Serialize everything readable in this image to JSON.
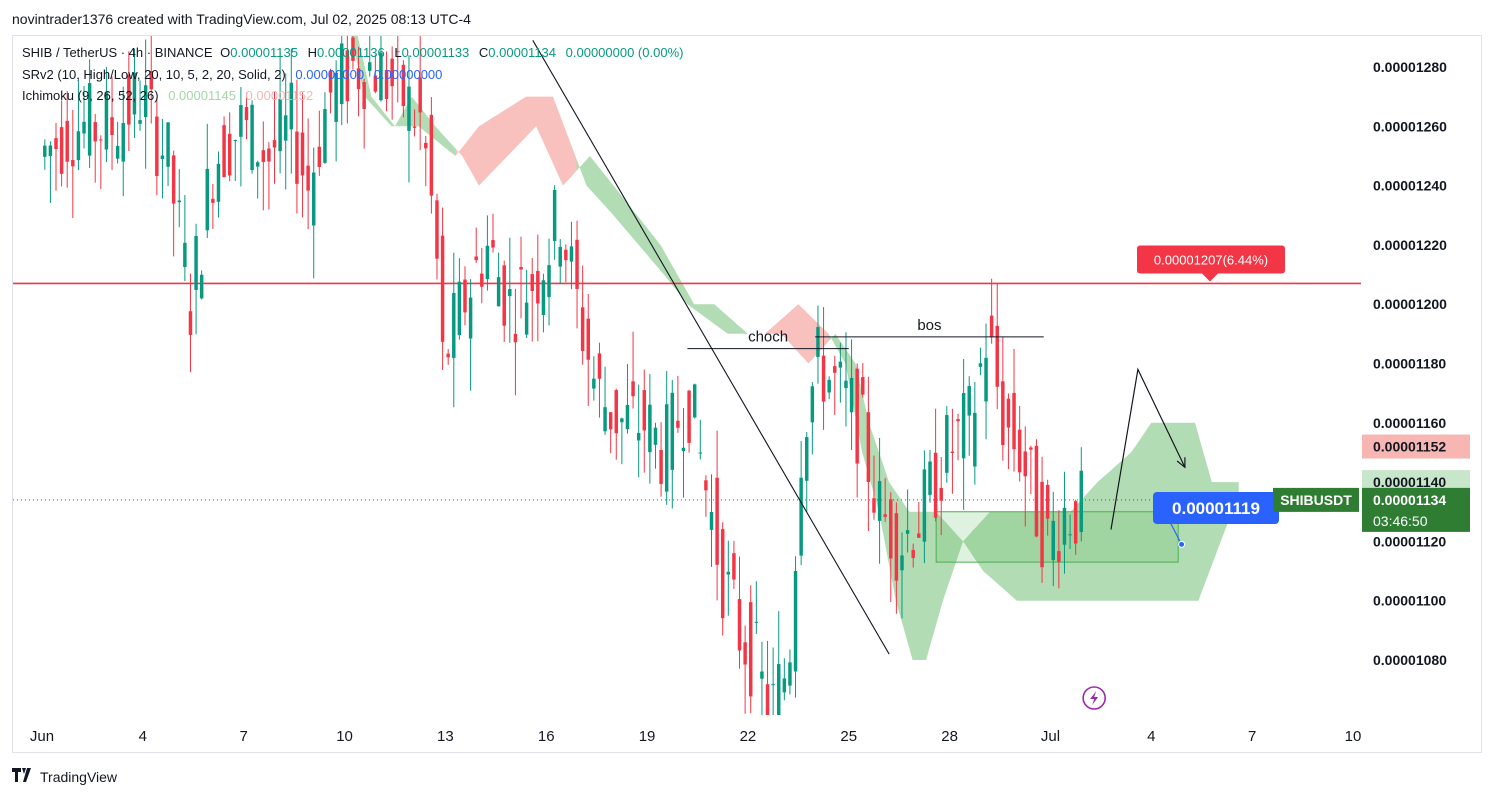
{
  "header": {
    "caption": "novintrader1376 created with TradingView.com, Jul 02, 2025 08:13 UTC-4"
  },
  "legend": {
    "symbol_line": {
      "symbol": "SHIB / TetherUS · 4h · BINANCE",
      "o_label": "O",
      "o_value": "0.00001135",
      "h_label": "H",
      "h_value": "0.00001136",
      "l_label": "L",
      "l_value": "0.00001133",
      "c_label": "C",
      "c_value": "0.00001134",
      "change": "0.00000000 (0.00%)"
    },
    "srv2": {
      "name": "SRv2 (10, High/Low, 20, 10, 5, 2, 20, Solid, 2)",
      "v1": "0.00000000",
      "v2": "0.00000000"
    },
    "ichimoku": {
      "name": "Ichimoku (9, 26, 52, 26)",
      "v1": "0.00001145",
      "v2": "0.00001152"
    }
  },
  "footer": {
    "brand": "TradingView",
    "logo_icon": "tradingview-logo-icon"
  },
  "colors": {
    "up": "#26a69a",
    "up_candle": "#089981",
    "down": "#f23645",
    "cloud_down": "#f7b6b2",
    "cloud_up": "#a5d6a7",
    "level": "#f23645",
    "blue_tag": "#2962ff",
    "green_tag": "#2e7d32"
  },
  "chart_data": {
    "type": "candlestick",
    "title": "SHIB / TetherUS · 4h · BINANCE",
    "x_ticks": [
      {
        "label": "Jun",
        "day": 1
      },
      {
        "label": "4",
        "day": 4
      },
      {
        "label": "7",
        "day": 7
      },
      {
        "label": "10",
        "day": 10
      },
      {
        "label": "13",
        "day": 13
      },
      {
        "label": "16",
        "day": 16
      },
      {
        "label": "19",
        "day": 19
      },
      {
        "label": "22",
        "day": 22
      },
      {
        "label": "25",
        "day": 25
      },
      {
        "label": "28",
        "day": 28
      },
      {
        "label": "Jul",
        "day": 31
      },
      {
        "label": "4",
        "day": 34
      },
      {
        "label": "7",
        "day": 37
      },
      {
        "label": "10",
        "day": 40
      }
    ],
    "y_ticks": [
      "0.00001280",
      "0.00001260",
      "0.00001240",
      "0.00001220",
      "0.00001200",
      "0.00001180",
      "0.00001160",
      "0.00001140",
      "0.00001120",
      "0.00001100",
      "0.00001080"
    ],
    "ylim": [
      1.06e-05,
      1.29e-05
    ],
    "price_anchors": [
      [
        1,
        1.25e-05
      ],
      [
        2,
        1.26e-05
      ],
      [
        3.2,
        1.26e-05
      ],
      [
        4,
        1.27e-05
      ],
      [
        4.8,
        1.25e-05
      ],
      [
        5.5,
        1.2e-05
      ],
      [
        6.2,
        1.25e-05
      ],
      [
        7,
        1.26e-05
      ],
      [
        7.8,
        1.25e-05
      ],
      [
        8.5,
        1.26e-05
      ],
      [
        9,
        1.24e-05
      ],
      [
        9.6,
        1.27e-05
      ],
      [
        10.3,
        1.28e-05
      ],
      [
        11,
        1.28e-05
      ],
      [
        11.8,
        1.27e-05
      ],
      [
        12.4,
        1.26e-05
      ],
      [
        12.8,
        1.22e-05
      ],
      [
        13,
        1.18e-05
      ],
      [
        13.6,
        1.2e-05
      ],
      [
        14.3,
        1.22e-05
      ],
      [
        15,
        1.2e-05
      ],
      [
        15.8,
        1.21e-05
      ],
      [
        16.5,
        1.23e-05
      ],
      [
        17,
        1.2e-05
      ],
      [
        17.6,
        1.17e-05
      ],
      [
        18.3,
        1.16e-05
      ],
      [
        19,
        1.16e-05
      ],
      [
        19.6,
        1.15e-05
      ],
      [
        20.3,
        1.17e-05
      ],
      [
        20.8,
        1.14e-05
      ],
      [
        21.3,
        1.11e-05
      ],
      [
        21.8,
        1.09e-05
      ],
      [
        22.3,
        1.08e-05
      ],
      [
        22.7,
        1.06e-05
      ],
      [
        23.3,
        1.08e-05
      ],
      [
        23.7,
        1.16e-05
      ],
      [
        24.2,
        1.18e-05
      ],
      [
        24.8,
        1.17e-05
      ],
      [
        25.4,
        1.16e-05
      ],
      [
        26,
        1.13e-05
      ],
      [
        26.6,
        1.12e-05
      ],
      [
        27.3,
        1.13e-05
      ],
      [
        28,
        1.15e-05
      ],
      [
        28.7,
        1.16e-05
      ],
      [
        29.2,
        1.19e-05
      ],
      [
        29.7,
        1.16e-05
      ],
      [
        30.2,
        1.15e-05
      ],
      [
        30.7,
        1.13e-05
      ],
      [
        31,
        1.12e-05
      ],
      [
        31.5,
        1.13e-05
      ],
      [
        31.8,
        1.13e-05
      ]
    ],
    "cloud_top": [
      [
        1,
        1.3e-05
      ],
      [
        10.2,
        1.3e-05
      ],
      [
        10.8,
        1.27e-05
      ],
      [
        11.5,
        1.26e-05
      ],
      [
        12,
        1.27e-05
      ],
      [
        12.7,
        1.26e-05
      ],
      [
        13.5,
        1.25e-05
      ],
      [
        14,
        1.24e-05
      ],
      [
        15.7,
        1.26e-05
      ],
      [
        16.5,
        1.24e-05
      ],
      [
        17.3,
        1.25e-05
      ],
      [
        18,
        1.24e-05
      ],
      [
        19.4,
        1.22e-05
      ],
      [
        20.4,
        1.2e-05
      ],
      [
        21,
        1.2e-05
      ],
      [
        22,
        1.19e-05
      ],
      [
        23,
        1.19e-05
      ],
      [
        23.8,
        1.18e-05
      ],
      [
        24.6,
        1.19e-05
      ],
      [
        25.2,
        1.18e-05
      ],
      [
        25.6,
        1.16e-05
      ],
      [
        26.2,
        1.14e-05
      ],
      [
        26.8,
        1.13e-05
      ],
      [
        27.6,
        1.13e-05
      ],
      [
        28.4,
        1.12e-05
      ],
      [
        29.2,
        1.13e-05
      ],
      [
        30.6,
        1.13e-05
      ],
      [
        31.6,
        1.13e-05
      ],
      [
        32.4,
        1.14e-05
      ],
      [
        33.4,
        1.15e-05
      ],
      [
        34,
        1.16e-05
      ],
      [
        35.3,
        1.16e-05
      ],
      [
        35.8,
        1.14e-05
      ],
      [
        36.6,
        1.14e-05
      ]
    ],
    "cloud_bottom": [
      [
        1,
        1.3e-05
      ],
      [
        10,
        1.3e-05
      ],
      [
        10.6,
        1.27e-05
      ],
      [
        11.4,
        1.26e-05
      ],
      [
        12.2,
        1.26e-05
      ],
      [
        13.3,
        1.25e-05
      ],
      [
        14,
        1.26e-05
      ],
      [
        15.4,
        1.27e-05
      ],
      [
        16.2,
        1.27e-05
      ],
      [
        17.2,
        1.24e-05
      ],
      [
        18,
        1.23e-05
      ],
      [
        19.5,
        1.21e-05
      ],
      [
        20.2,
        1.2e-05
      ],
      [
        21.4,
        1.19e-05
      ],
      [
        22.5,
        1.19e-05
      ],
      [
        23.5,
        1.2e-05
      ],
      [
        24.4,
        1.19e-05
      ],
      [
        24.9,
        1.18e-05
      ],
      [
        25.4,
        1.15e-05
      ],
      [
        25.9,
        1.13e-05
      ],
      [
        26.4,
        1.1e-05
      ],
      [
        26.9,
        1.08e-05
      ],
      [
        27.3,
        1.08e-05
      ],
      [
        27.8,
        1.1e-05
      ],
      [
        28.4,
        1.12e-05
      ],
      [
        29,
        1.11e-05
      ],
      [
        30,
        1.1e-05
      ],
      [
        31,
        1.1e-05
      ],
      [
        32,
        1.1e-05
      ],
      [
        33,
        1.1e-05
      ],
      [
        34,
        1.1e-05
      ],
      [
        35.4,
        1.1e-05
      ],
      [
        36.4,
        1.13e-05
      ]
    ],
    "resistance_level": 1.207e-05,
    "resistance_label": "0.00001207(6.44%)",
    "marked_box": {
      "x_start": 27.6,
      "x_end": 34.8,
      "y_low": 1.113e-05,
      "y_high": 1.13e-05
    },
    "bos": {
      "label": "bos",
      "x_start": 24.0,
      "x_end": 30.8,
      "y": 1.189e-05
    },
    "choch": {
      "label": "choch",
      "x_start": 20.2,
      "x_end": 25.0,
      "y": 1.185e-05
    },
    "trend_line": {
      "from": [
        15.6,
        1.289e-05
      ],
      "to": [
        26.2,
        1.082e-05
      ]
    },
    "projection": [
      [
        32.8,
        1.124e-05
      ],
      [
        33.6,
        1.178e-05
      ],
      [
        35.0,
        1.145e-05
      ]
    ],
    "price_marker": {
      "label": "0.00001119",
      "value": 1.119e-05,
      "x": 34.9
    },
    "current_price": 1.134e-05,
    "axis_labels": {
      "ichimoku_b": {
        "value": 1.152e-05,
        "text": "0.00001152"
      },
      "ichimoku_a": {
        "value": 1.14e-05,
        "text": "0.00001140"
      },
      "last_price": {
        "value": 1.134e-05,
        "text": "0.00001134",
        "countdown": "03:46:50",
        "symbol": "SHIBUSDT"
      }
    },
    "lightning_icon": "lightning-bolt-icon"
  }
}
